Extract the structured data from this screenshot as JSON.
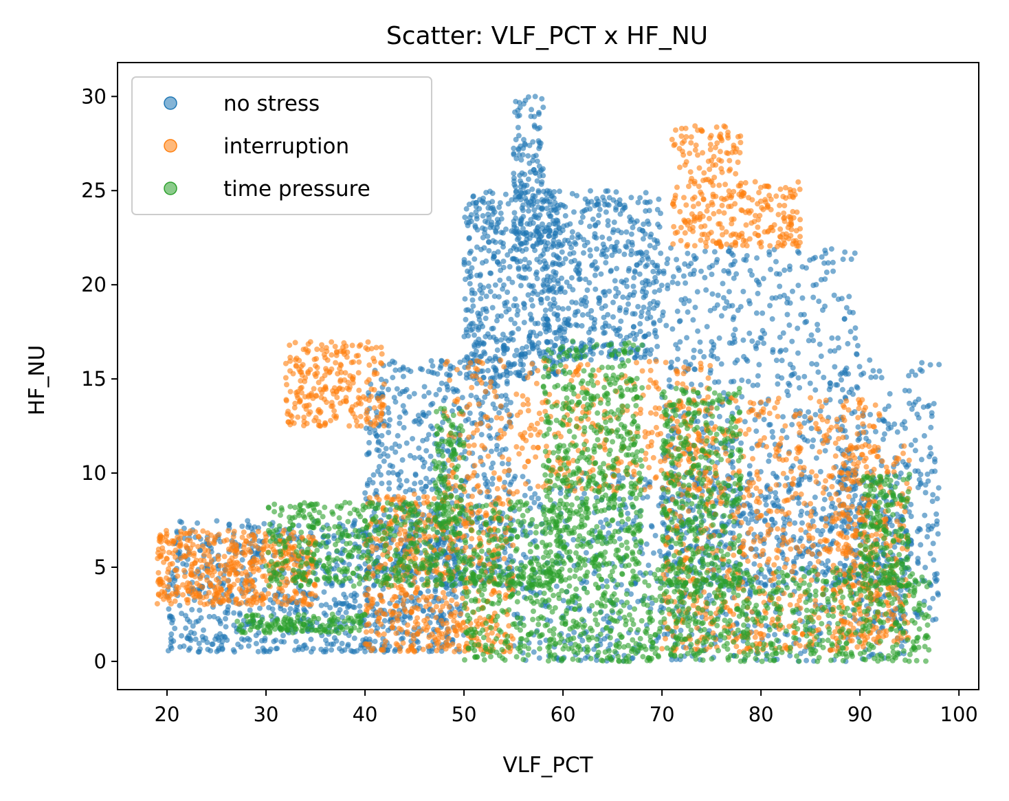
{
  "chart_data": {
    "type": "scatter",
    "title": "Scatter: VLF_PCT x HF_NU",
    "xlabel": "VLF_PCT",
    "ylabel": "HF_NU",
    "xlim": [
      15,
      102
    ],
    "ylim": [
      -1.5,
      31.8
    ],
    "xticks": [
      20,
      30,
      40,
      50,
      60,
      70,
      80,
      90,
      100
    ],
    "yticks": [
      0,
      5,
      10,
      15,
      20,
      25,
      30
    ],
    "grid": false,
    "legend_position": "upper-left",
    "series": [
      {
        "name": "no stress",
        "color": "#1f77b4",
        "clusters": [
          {
            "x": [
              20,
              50
            ],
            "y": [
              0.5,
              7.5
            ],
            "n": 900
          },
          {
            "x": [
              40,
              55
            ],
            "y": [
              4,
              16
            ],
            "n": 600
          },
          {
            "x": [
              50,
              60
            ],
            "y": [
              15,
              25
            ],
            "n": 500
          },
          {
            "x": [
              55,
              58
            ],
            "y": [
              22,
              30
            ],
            "n": 150
          },
          {
            "x": [
              58,
              70
            ],
            "y": [
              16,
              25
            ],
            "n": 500
          },
          {
            "x": [
              70,
              90
            ],
            "y": [
              4,
              22
            ],
            "n": 800
          },
          {
            "x": [
              88,
              98
            ],
            "y": [
              2,
              16
            ],
            "n": 300
          },
          {
            "x": [
              55,
              95
            ],
            "y": [
              0,
              10
            ],
            "n": 700
          }
        ]
      },
      {
        "name": "interruption",
        "color": "#ff7f0e",
        "clusters": [
          {
            "x": [
              19,
              35
            ],
            "y": [
              3,
              7
            ],
            "n": 500
          },
          {
            "x": [
              32,
              42
            ],
            "y": [
              12.5,
              17
            ],
            "n": 250
          },
          {
            "x": [
              40,
              55
            ],
            "y": [
              0.5,
              9
            ],
            "n": 600
          },
          {
            "x": [
              48,
              75
            ],
            "y": [
              9,
              16
            ],
            "n": 400
          },
          {
            "x": [
              71,
              78
            ],
            "y": [
              22,
              28.5
            ],
            "n": 200
          },
          {
            "x": [
              78,
              84
            ],
            "y": [
              22,
              25.5
            ],
            "n": 120
          },
          {
            "x": [
              70,
              92
            ],
            "y": [
              0.5,
              14
            ],
            "n": 800
          },
          {
            "x": [
              88,
              95
            ],
            "y": [
              1,
              11.5
            ],
            "n": 250
          }
        ]
      },
      {
        "name": "time pressure",
        "color": "#2ca02c",
        "clusters": [
          {
            "x": [
              27,
              40
            ],
            "y": [
              1.5,
              2.5
            ],
            "n": 150
          },
          {
            "x": [
              30,
              60
            ],
            "y": [
              4,
              8.5
            ],
            "n": 700
          },
          {
            "x": [
              47,
              50
            ],
            "y": [
              7,
              13.5
            ],
            "n": 120
          },
          {
            "x": [
              58,
              68
            ],
            "y": [
              5,
              17
            ],
            "n": 600
          },
          {
            "x": [
              70,
              78
            ],
            "y": [
              4,
              14.5
            ],
            "n": 400
          },
          {
            "x": [
              50,
              97
            ],
            "y": [
              0,
              5
            ],
            "n": 1000
          },
          {
            "x": [
              90,
              95
            ],
            "y": [
              4,
              10
            ],
            "n": 200
          }
        ]
      }
    ]
  }
}
